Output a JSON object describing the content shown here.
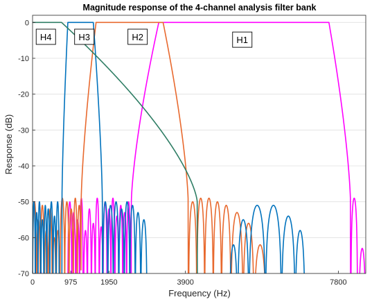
{
  "chart_data": {
    "type": "line",
    "title": "Magnitude response of the 4-channel analysis filter bank",
    "xlabel": "Frequency (Hz)",
    "ylabel": "Response (dB)",
    "xlim": [
      0,
      8500
    ],
    "ylim": [
      -70,
      2
    ],
    "xticks": [
      0,
      975,
      1950,
      3900,
      7800
    ],
    "yticks": [
      0,
      -10,
      -20,
      -30,
      -40,
      -50,
      -60,
      -70
    ],
    "grid": "y-major",
    "series": [
      {
        "name": "H1",
        "color": "#ff00ff",
        "passband": [
          3220,
          7560
        ],
        "stopband_x": [
          2520,
          8110
        ],
        "stopband_lobes_x": [
          [
            150,
            260
          ],
          [
            900,
            1000
          ],
          [
            1000,
            1100
          ],
          [
            1100,
            1200
          ],
          [
            1200,
            1290
          ],
          [
            1300,
            1400
          ],
          [
            1400,
            1500
          ],
          [
            1500,
            1600
          ],
          [
            1600,
            1700
          ],
          [
            1700,
            1800
          ],
          [
            1800,
            1900
          ],
          [
            1900,
            2000
          ],
          [
            2000,
            2100
          ],
          [
            2100,
            2200
          ],
          [
            2200,
            2300
          ],
          [
            2300,
            2400
          ],
          [
            2400,
            2500
          ],
          [
            7900,
            8050
          ],
          [
            8120,
            8290
          ],
          [
            8320,
            8500
          ]
        ],
        "stopband_lobe_peaks_db": [
          -69,
          -50,
          -53,
          -55,
          -49,
          -58,
          -52,
          -56,
          -49,
          -57,
          -50,
          -52,
          -49,
          -54,
          -51,
          -53,
          -50,
          -49,
          -49,
          -63
        ]
      },
      {
        "name": "H2",
        "color": "#e8692e",
        "passband": [
          1620,
          3330
        ],
        "stopband_x": [
          1240,
          3970
        ],
        "stopband_lobes_x": [
          [
            0,
            100
          ],
          [
            100,
            200
          ],
          [
            200,
            300
          ],
          [
            300,
            400
          ],
          [
            400,
            500
          ],
          [
            500,
            600
          ],
          [
            600,
            700
          ],
          [
            700,
            820
          ],
          [
            820,
            930
          ],
          [
            930,
            1040
          ],
          [
            1040,
            1140
          ],
          [
            1140,
            1240
          ],
          [
            3980,
            4190
          ],
          [
            4190,
            4390
          ],
          [
            4390,
            4610
          ],
          [
            4610,
            4820
          ],
          [
            4820,
            5060
          ],
          [
            5060,
            5370
          ],
          [
            5370,
            5650
          ],
          [
            5650,
            5960
          ]
        ],
        "stopband_lobe_peaks_db": [
          -50,
          -55,
          -51,
          -58,
          -52,
          -60,
          -58,
          -49,
          -50,
          -52,
          -49,
          -51,
          -50,
          -49,
          -49,
          -50,
          -51,
          -53,
          -56,
          -62
        ]
      },
      {
        "name": "H3",
        "color": "#0072bd",
        "passband": [
          900,
          1550
        ],
        "stopband_x": [
          750,
          1780
        ],
        "stopband_lobes_x": [
          [
            0,
            70
          ],
          [
            70,
            140
          ],
          [
            140,
            210
          ],
          [
            210,
            290
          ],
          [
            290,
            360
          ],
          [
            360,
            440
          ],
          [
            440,
            520
          ],
          [
            520,
            600
          ],
          [
            600,
            680
          ],
          [
            1790,
            1920
          ],
          [
            1920,
            2060
          ],
          [
            2060,
            2200
          ],
          [
            2200,
            2340
          ],
          [
            2340,
            2480
          ],
          [
            2480,
            2620
          ],
          [
            2620,
            2760
          ],
          [
            2760,
            2920
          ],
          [
            5020,
            5230
          ],
          [
            5230,
            5520
          ],
          [
            5520,
            5940
          ],
          [
            5940,
            6350
          ],
          [
            6350,
            6700
          ],
          [
            6700,
            6950
          ]
        ],
        "stopband_lobe_peaks_db": [
          -50,
          -53,
          -50,
          -55,
          -51,
          -52,
          -50,
          -54,
          -50,
          -50,
          -51,
          -50,
          -52,
          -50,
          -51,
          -53,
          -55,
          -62,
          -55,
          -51,
          -51,
          -54,
          -58
        ]
      },
      {
        "name": "H4",
        "color": "#2e7d64",
        "passband": [
          0,
          740
        ],
        "stopband_x": [
          880,
          4200
        ],
        "stopband_lobes_x": [
          [
            880,
            960
          ],
          [
            960,
            1040
          ],
          [
            1040,
            1110
          ],
          [
            1110,
            1190
          ],
          [
            1190,
            1280
          ],
          [
            1280,
            1370
          ],
          [
            1370,
            1460
          ],
          [
            1460,
            1550
          ],
          [
            1550,
            1650
          ],
          [
            1650,
            1760
          ],
          [
            1760,
            1870
          ],
          [
            1870,
            1980
          ],
          [
            1980,
            2100
          ],
          [
            2100,
            2230
          ],
          [
            2230,
            2370
          ],
          [
            2370,
            2520
          ],
          [
            2520,
            2670
          ],
          [
            2670,
            2830
          ],
          [
            2830,
            3010
          ],
          [
            3010,
            3200
          ],
          [
            3200,
            3400
          ],
          [
            3400,
            3620
          ],
          [
            3620,
            3850
          ],
          [
            3850,
            4100
          ]
        ],
        "stopband_lobe_peaks_db": [
          -50,
          -49,
          -53,
          -55,
          -50,
          -52,
          -49,
          -51,
          -50,
          -52,
          -50,
          -51,
          -52,
          -50,
          -53,
          -51,
          -54,
          -52,
          -55,
          -53,
          -58,
          -57,
          -62,
          -66
        ]
      }
    ],
    "annotations": [
      {
        "label": "H4",
        "x": 340,
        "y": -4
      },
      {
        "label": "H3",
        "x": 1320,
        "y": -4
      },
      {
        "label": "H2",
        "x": 2680,
        "y": -4
      },
      {
        "label": "H1",
        "x": 5350,
        "y": -4.8
      }
    ]
  }
}
